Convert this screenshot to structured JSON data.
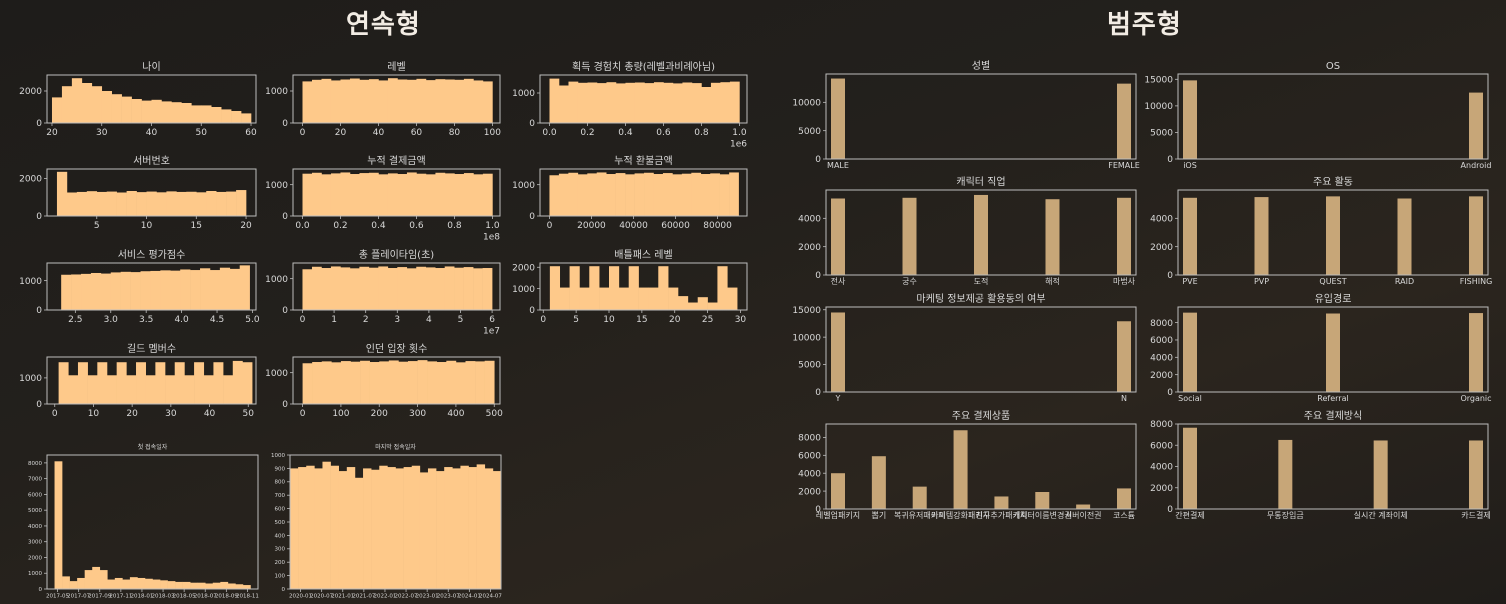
{
  "sections": {
    "numeric": "연속형",
    "categorical": "범주형"
  },
  "colors": {
    "hist": "#fec98a",
    "bar": "#c7a678",
    "frame": "#bdbdbd",
    "text": "#d8d8d8",
    "bg": "#1c1a18"
  },
  "chart_data": [
    {
      "id": "age",
      "type": "bar",
      "kind": "hist",
      "title": "나이",
      "x": [
        20,
        22,
        24,
        26,
        28,
        30,
        32,
        34,
        36,
        38,
        40,
        42,
        44,
        46,
        48,
        50,
        52,
        54,
        56,
        58
      ],
      "values": [
        1600,
        2300,
        2800,
        2500,
        2300,
        2000,
        1800,
        1650,
        1500,
        1400,
        1450,
        1350,
        1300,
        1250,
        1100,
        1100,
        1000,
        850,
        750,
        600
      ],
      "xlim": [
        19,
        61
      ],
      "ylim": [
        0,
        3000
      ],
      "xticks": [
        "20",
        "30",
        "40",
        "50",
        "60"
      ],
      "yticks": [
        "0",
        "2000"
      ],
      "offset": ""
    },
    {
      "id": "level",
      "type": "bar",
      "kind": "hist",
      "title": "레벨",
      "x": [
        0,
        5,
        10,
        15,
        20,
        25,
        30,
        35,
        40,
        45,
        50,
        55,
        60,
        65,
        70,
        75,
        80,
        85,
        90,
        95
      ],
      "values": [
        1300,
        1350,
        1380,
        1330,
        1360,
        1390,
        1350,
        1370,
        1330,
        1400,
        1360,
        1350,
        1380,
        1340,
        1370,
        1360,
        1350,
        1380,
        1330,
        1300
      ],
      "xlim": [
        -5,
        104
      ],
      "ylim": [
        0,
        1500
      ],
      "xticks": [
        "0",
        "20",
        "40",
        "60",
        "80",
        "100"
      ],
      "yticks": [
        "0",
        "1000"
      ],
      "offset": ""
    },
    {
      "id": "exp",
      "type": "bar",
      "kind": "hist",
      "title": "획득 경험치 총량(레벨과비례아님)",
      "x": [
        0,
        0.05,
        0.1,
        0.15,
        0.2,
        0.25,
        0.3,
        0.35,
        0.4,
        0.45,
        0.5,
        0.55,
        0.6,
        0.65,
        0.7,
        0.75,
        0.8,
        0.85,
        0.9,
        0.95
      ],
      "values": [
        1480,
        1250,
        1380,
        1340,
        1350,
        1330,
        1360,
        1320,
        1340,
        1350,
        1330,
        1360,
        1340,
        1320,
        1350,
        1330,
        1200,
        1340,
        1360,
        1380
      ],
      "xlim": [
        -0.05,
        1.04
      ],
      "ylim": [
        0,
        1600
      ],
      "xticks": [
        "0.0",
        "0.2",
        "0.4",
        "0.6",
        "0.8",
        "1.0"
      ],
      "yticks": [
        "0",
        "1000"
      ],
      "offset": "1e6"
    },
    {
      "id": "server",
      "type": "bar",
      "kind": "hist",
      "title": "서버번호",
      "x": [
        1,
        2,
        3,
        4,
        5,
        6,
        7,
        8,
        9,
        10,
        11,
        12,
        13,
        14,
        15,
        16,
        17,
        18,
        19
      ],
      "values": [
        2350,
        1250,
        1280,
        1320,
        1280,
        1300,
        1250,
        1330,
        1270,
        1300,
        1260,
        1310,
        1280,
        1290,
        1260,
        1330,
        1280,
        1300,
        1380
      ],
      "xlim": [
        0,
        21
      ],
      "ylim": [
        0,
        2500
      ],
      "xticks": [
        "5",
        "10",
        "15",
        "20"
      ],
      "yticks": [
        "0",
        "2000"
      ],
      "offset": ""
    },
    {
      "id": "pay",
      "type": "bar",
      "kind": "hist",
      "title": "누적 결제금액",
      "x": [
        0,
        0.05,
        0.1,
        0.15,
        0.2,
        0.25,
        0.3,
        0.35,
        0.4,
        0.45,
        0.5,
        0.55,
        0.6,
        0.65,
        0.7,
        0.75,
        0.8,
        0.85,
        0.9,
        0.95
      ],
      "values": [
        1350,
        1380,
        1330,
        1360,
        1390,
        1340,
        1370,
        1380,
        1330,
        1360,
        1340,
        1390,
        1350,
        1330,
        1380,
        1360,
        1340,
        1370,
        1330,
        1350
      ],
      "xlim": [
        -0.05,
        1.04
      ],
      "ylim": [
        0,
        1500
      ],
      "xticks": [
        "0.0",
        "0.2",
        "0.4",
        "0.6",
        "0.8",
        "1.0"
      ],
      "yticks": [
        "0",
        "1000"
      ],
      "offset": "1e8"
    },
    {
      "id": "refund",
      "type": "bar",
      "kind": "hist",
      "title": "누적 환불금액",
      "x": [
        0,
        4500,
        9000,
        13500,
        18000,
        22500,
        27000,
        31500,
        36000,
        40500,
        45000,
        49500,
        54000,
        58500,
        63000,
        67500,
        72000,
        76500,
        81000,
        85500
      ],
      "values": [
        1300,
        1350,
        1380,
        1330,
        1360,
        1390,
        1340,
        1370,
        1330,
        1360,
        1380,
        1340,
        1370,
        1330,
        1350,
        1380,
        1340,
        1360,
        1330,
        1390
      ],
      "xlim": [
        -4500,
        94000
      ],
      "ylim": [
        0,
        1500
      ],
      "xticks": [
        "0",
        "20000",
        "40000",
        "60000",
        "80000"
      ],
      "yticks": [
        "0",
        "1000"
      ],
      "offset": ""
    },
    {
      "id": "rating",
      "type": "bar",
      "kind": "hist",
      "title": "서비스 평가점수",
      "x": [
        2.3,
        2.44,
        2.58,
        2.72,
        2.86,
        3.0,
        3.14,
        3.28,
        3.42,
        3.56,
        3.7,
        3.84,
        3.98,
        4.12,
        4.26,
        4.4,
        4.54,
        4.68,
        4.82
      ],
      "values": [
        1200,
        1210,
        1230,
        1260,
        1240,
        1280,
        1300,
        1290,
        1320,
        1330,
        1350,
        1340,
        1380,
        1360,
        1420,
        1360,
        1440,
        1400,
        1520
      ],
      "xlim": [
        2.1,
        5.05
      ],
      "ylim": [
        0,
        1600
      ],
      "xticks": [
        "2.5",
        "3.0",
        "3.5",
        "4.0",
        "4.5",
        "5.0"
      ],
      "yticks": [
        "0",
        "1000"
      ],
      "offset": ""
    },
    {
      "id": "playtime",
      "type": "bar",
      "kind": "hist",
      "title": "총 플레이타임(초)",
      "x": [
        0,
        0.3,
        0.6,
        0.9,
        1.2,
        1.5,
        1.8,
        2.1,
        2.4,
        2.7,
        3.0,
        3.3,
        3.6,
        3.9,
        4.2,
        4.5,
        4.8,
        5.1,
        5.4,
        5.7
      ],
      "values": [
        1300,
        1380,
        1340,
        1390,
        1360,
        1330,
        1380,
        1350,
        1390,
        1340,
        1370,
        1330,
        1380,
        1360,
        1340,
        1390,
        1350,
        1370,
        1330,
        1340
      ],
      "xlim": [
        -0.3,
        6.25
      ],
      "ylim": [
        0,
        1500
      ],
      "xticks": [
        "0",
        "1",
        "2",
        "3",
        "4",
        "5",
        "6"
      ],
      "yticks": [
        "0",
        "1000"
      ],
      "offset": "1e7"
    },
    {
      "id": "battlepass",
      "type": "bar",
      "kind": "hist",
      "title": "배틀패스 레벨",
      "x": [
        1,
        2.5,
        4,
        5.5,
        7,
        8.5,
        10,
        11.5,
        13,
        14.5,
        16,
        17.5,
        19,
        20.5,
        22,
        23.5,
        25,
        26.5,
        28
      ],
      "values": [
        2050,
        1050,
        2050,
        1050,
        2050,
        1050,
        2050,
        1050,
        2050,
        1050,
        1050,
        2050,
        1050,
        650,
        350,
        600,
        350,
        2050,
        1050
      ],
      "xlim": [
        -0.5,
        31
      ],
      "ylim": [
        0,
        2200
      ],
      "xticks": [
        "0",
        "5",
        "10",
        "15",
        "20",
        "25",
        "30"
      ],
      "yticks": [
        "0",
        "1000",
        "2000"
      ],
      "offset": ""
    },
    {
      "id": "guild",
      "type": "bar",
      "kind": "hist",
      "title": "길드 멤버수",
      "x": [
        1,
        3.5,
        6,
        8.5,
        11,
        13.5,
        16,
        18.5,
        21,
        23.5,
        26,
        28.5,
        31,
        33.5,
        36,
        38.5,
        41,
        43.5,
        46,
        48.5
      ],
      "values": [
        1600,
        1100,
        1600,
        1100,
        1600,
        1100,
        1600,
        1100,
        1600,
        1100,
        1600,
        1100,
        1600,
        1100,
        1600,
        1100,
        1600,
        1100,
        1650,
        1600
      ],
      "xlim": [
        -2,
        52
      ],
      "ylim": [
        0,
        1800
      ],
      "xticks": [
        "0",
        "10",
        "20",
        "30",
        "40",
        "50"
      ],
      "yticks": [
        "0",
        "1000"
      ],
      "offset": ""
    },
    {
      "id": "dungeon",
      "type": "bar",
      "kind": "hist",
      "title": "인던 입장 횟수",
      "x": [
        0,
        25,
        50,
        75,
        100,
        125,
        150,
        175,
        200,
        225,
        250,
        275,
        300,
        325,
        350,
        375,
        400,
        425,
        450,
        475
      ],
      "values": [
        1300,
        1340,
        1360,
        1330,
        1370,
        1350,
        1380,
        1340,
        1360,
        1390,
        1350,
        1370,
        1400,
        1360,
        1340,
        1380,
        1330,
        1370,
        1360,
        1380
      ],
      "xlim": [
        -25,
        515
      ],
      "ylim": [
        0,
        1500
      ],
      "xticks": [
        "0",
        "100",
        "200",
        "300",
        "400",
        "500"
      ],
      "yticks": [
        "0",
        "1000"
      ],
      "offset": ""
    },
    {
      "id": "firstlogin",
      "type": "bar",
      "kind": "hist",
      "small": true,
      "title": "첫 접속일자",
      "x": [
        0,
        1,
        2,
        3,
        4,
        5,
        6,
        7,
        8,
        9,
        10,
        11,
        12,
        13,
        14,
        15,
        16,
        17,
        18,
        19,
        20,
        21,
        22,
        23,
        24,
        25
      ],
      "values": [
        8100,
        800,
        500,
        700,
        1200,
        1400,
        1200,
        600,
        700,
        600,
        750,
        700,
        650,
        600,
        550,
        500,
        450,
        450,
        400,
        400,
        350,
        400,
        450,
        350,
        300,
        250
      ],
      "xlim": [
        -1,
        27
      ],
      "ylim": [
        0,
        8500
      ],
      "xticks": [
        "2017-05",
        "2017-07",
        "2017-09",
        "2017-11",
        "2018-01",
        "2018-03",
        "2018-05",
        "2018-07",
        "2018-09",
        "2018-11"
      ],
      "yticks": [
        "0",
        "1000",
        "2000",
        "3000",
        "4000",
        "5000",
        "6000",
        "7000",
        "8000"
      ],
      "offset": ""
    },
    {
      "id": "lastlogin",
      "type": "bar",
      "kind": "hist",
      "small": true,
      "title": "마지막 접속일자",
      "x": [
        0,
        1,
        2,
        3,
        4,
        5,
        6,
        7,
        8,
        9,
        10,
        11,
        12,
        13,
        14,
        15,
        16,
        17,
        18,
        19,
        20,
        21,
        22,
        23,
        24,
        25
      ],
      "values": [
        900,
        910,
        920,
        900,
        950,
        920,
        880,
        910,
        830,
        900,
        890,
        920,
        910,
        900,
        910,
        920,
        870,
        900,
        880,
        910,
        900,
        920,
        910,
        930,
        900,
        880
      ],
      "xlim": [
        0,
        26
      ],
      "ylim": [
        0,
        1000
      ],
      "xticks": [
        "2020-01",
        "2020-07",
        "2021-01",
        "2021-07",
        "2022-01",
        "2022-07",
        "2023-01",
        "2023-07",
        "2024-01",
        "2024-07"
      ],
      "yticks": [
        "0",
        "100",
        "200",
        "300",
        "400",
        "500",
        "600",
        "700",
        "800",
        "900",
        "1000"
      ],
      "offset": ""
    },
    {
      "id": "gender",
      "type": "bar",
      "kind": "cat",
      "title": "성별",
      "categories": [
        "MALE",
        "FEMALE"
      ],
      "values": [
        14200,
        13300
      ],
      "ylim": [
        0,
        15000
      ],
      "yticks": [
        "0",
        "5000",
        "10000"
      ]
    },
    {
      "id": "os",
      "type": "bar",
      "kind": "cat",
      "title": "OS",
      "categories": [
        "iOS",
        "Android"
      ],
      "values": [
        14800,
        12500
      ],
      "ylim": [
        0,
        16000
      ],
      "yticks": [
        "0",
        "5000",
        "10000",
        "15000"
      ]
    },
    {
      "id": "job",
      "type": "bar",
      "kind": "cat",
      "title": "캐릭터 직업",
      "categories": [
        "전사",
        "궁수",
        "도적",
        "해적",
        "마법사"
      ],
      "values": [
        5400,
        5450,
        5650,
        5350,
        5450
      ],
      "ylim": [
        0,
        6000
      ],
      "yticks": [
        "0",
        "2000",
        "4000"
      ]
    },
    {
      "id": "activity",
      "type": "bar",
      "kind": "cat",
      "title": "주요 활동",
      "categories": [
        "PVE",
        "PVP",
        "QUEST",
        "RAID",
        "FISHING"
      ],
      "values": [
        5450,
        5500,
        5550,
        5400,
        5550
      ],
      "ylim": [
        0,
        6000
      ],
      "yticks": [
        "0",
        "2000",
        "4000"
      ]
    },
    {
      "id": "marketing",
      "type": "bar",
      "kind": "cat",
      "title": "마케팅 정보제공 활용동의 여부",
      "categories": [
        "Y",
        "N"
      ],
      "values": [
        14500,
        12900
      ],
      "ylim": [
        0,
        15500
      ],
      "yticks": [
        "0",
        "5000",
        "10000",
        "15000"
      ]
    },
    {
      "id": "inflow",
      "type": "bar",
      "kind": "cat",
      "title": "유입경로",
      "categories": [
        "Social",
        "Referral",
        "Organic"
      ],
      "values": [
        9150,
        9050,
        9100
      ],
      "ylim": [
        0,
        9800
      ],
      "yticks": [
        "0",
        "2000",
        "4000",
        "6000",
        "8000"
      ]
    },
    {
      "id": "product",
      "type": "bar",
      "kind": "cat",
      "title": "주요 결제상품",
      "categories": [
        "레벨업패키지",
        "뽑기",
        "복귀유저패키지",
        "아이템강화패키지",
        "친구추가패키지",
        "캐릭터이름변경권",
        "서버이전권",
        "코스튬"
      ],
      "values": [
        4000,
        5900,
        2500,
        8800,
        1400,
        1900,
        500,
        2300
      ],
      "ylim": [
        0,
        9500
      ],
      "yticks": [
        "0",
        "2000",
        "4000",
        "6000",
        "8000"
      ]
    },
    {
      "id": "paymethod",
      "type": "bar",
      "kind": "cat",
      "title": "주요 결제방식",
      "categories": [
        "간편결제",
        "무통장입금",
        "실시간 계좌이체",
        "카드결제"
      ],
      "values": [
        7650,
        6500,
        6450,
        6450
      ],
      "ylim": [
        0,
        8000
      ],
      "yticks": [
        "0",
        "2000",
        "4000",
        "6000",
        "8000"
      ]
    }
  ]
}
